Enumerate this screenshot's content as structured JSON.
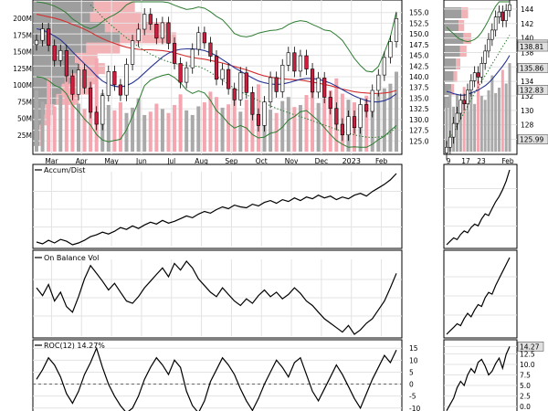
{
  "chart_data": {
    "type": "line",
    "colors": {
      "up_candle": "#ffffff",
      "down_candle": "#cc1f3f",
      "candle_outline": "#000000",
      "bollinger": "#2e7d32",
      "sma_red": "#d32f2f",
      "sma_blue": "#283593",
      "dotted_green": "#2e7d32",
      "volume_up": "#a9a9a9",
      "volume_down": "#f4a7b0",
      "volume_profile_grey": "#9e9e9e",
      "volume_profile_red": "#f2b3b7",
      "grid": "#e3e3e3",
      "label_box": "#e0e0e0"
    },
    "price_panel": {
      "x_labels": [
        "Mar",
        "Apr",
        "May",
        "Jun",
        "Jul",
        "Aug",
        "Sep",
        "Oct",
        "Nov",
        "Dec",
        "2023",
        "Feb"
      ],
      "y_labels": [
        "155.0",
        "152.5",
        "150.0",
        "147.5",
        "145.0",
        "142.5",
        "140.0",
        "137.5",
        "135.0",
        "132.5",
        "130.0",
        "127.5",
        "125.0"
      ],
      "y_range": [
        122.5,
        157.5
      ],
      "volume_labels": [
        "200M",
        "175M",
        "150M",
        "125M",
        "100M",
        "75M",
        "50M",
        "25M"
      ],
      "volume_range": [
        0,
        225
      ],
      "close": [
        148.5,
        151.2,
        147.3,
        143.8,
        146.1,
        140.2,
        135.9,
        141.6,
        137.4,
        131.7,
        128.9,
        135.6,
        141.2,
        138.1,
        135.7,
        142.9,
        148.4,
        151.1,
        154.6,
        152.3,
        149.0,
        152.6,
        147.8,
        143.1,
        138.7,
        142.1,
        146.4,
        150.3,
        147.9,
        144.8,
        139.4,
        141.7,
        137.2,
        134.6,
        140.9,
        136.3,
        131.2,
        128.6,
        134.1,
        139.8,
        136.5,
        142.7,
        145.6,
        141.3,
        144.9,
        141.8,
        136.4,
        139.7,
        135.2,
        132.6,
        128.9,
        126.4,
        130.7,
        128.1,
        133.5,
        131.9,
        136.8,
        140.4,
        144.5,
        148.2,
        153.6
      ],
      "bollinger_upper": [
        157.5,
        157.3,
        157.0,
        156.5,
        155.8,
        154.9,
        153.5,
        152.6,
        151.7,
        151.2,
        151.8,
        152.9,
        153.8,
        154.5,
        155.4,
        156.8,
        157.5,
        157.5,
        157.5,
        157.5,
        157.5,
        157.5,
        157.3,
        156.7,
        156.2,
        155.7,
        155.9,
        156.3,
        156.0,
        155.2,
        154.1,
        153.3,
        151.8,
        150.1,
        149.5,
        149.3,
        149.6,
        150.2,
        150.5,
        150.8,
        150.9,
        151.3,
        152.2,
        152.8,
        153.1,
        152.9,
        152.2,
        151.6,
        150.9,
        150.7,
        149.7,
        148.5,
        146.4,
        144.3,
        142.6,
        141.3,
        141.1,
        142.4,
        145.7,
        149.3,
        155.2
      ],
      "bollinger_lower": [
        140.0,
        139.8,
        139.1,
        138.0,
        137.4,
        136.0,
        133.4,
        131.9,
        130.1,
        128.7,
        126.5,
        125.2,
        124.8,
        125.1,
        125.4,
        127.6,
        130.8,
        134.3,
        137.9,
        139.2,
        139.8,
        140.3,
        140.6,
        139.8,
        138.6,
        136.9,
        136.1,
        136.7,
        136.2,
        134.5,
        132.1,
        130.8,
        129.1,
        128.0,
        128.6,
        128.0,
        126.5,
        125.7,
        125.9,
        126.8,
        127.1,
        128.2,
        129.9,
        130.7,
        131.8,
        132.1,
        130.9,
        129.7,
        128.1,
        126.5,
        125.1,
        124.2,
        123.5,
        123.6,
        123.5,
        123.5,
        124.2,
        125.3,
        126.1,
        127.4,
        128.6
      ],
      "sma_red": [
        154.6,
        154.3,
        154.0,
        153.7,
        153.3,
        152.8,
        152.2,
        151.7,
        151.1,
        150.4,
        149.6,
        148.9,
        148.3,
        147.8,
        147.3,
        146.9,
        146.6,
        146.4,
        146.3,
        146.3,
        146.2,
        146.1,
        145.9,
        145.6,
        145.2,
        144.8,
        144.5,
        144.3,
        144.1,
        143.8,
        143.5,
        143.2,
        142.8,
        142.4,
        142.0,
        141.6,
        141.1,
        140.6,
        140.2,
        139.9,
        139.7,
        139.5,
        139.4,
        139.3,
        139.2,
        139.0,
        138.7,
        138.5,
        138.2,
        137.9,
        137.5,
        137.1,
        136.8,
        136.5,
        136.3,
        136.2,
        136.1,
        136.1,
        136.2,
        136.4,
        136.8
      ],
      "sma_blue": [
        151.2,
        150.9,
        150.3,
        149.5,
        148.6,
        147.3,
        145.8,
        144.4,
        143.0,
        141.7,
        140.2,
        139.0,
        138.2,
        137.8,
        137.6,
        137.9,
        138.6,
        139.6,
        140.9,
        142.2,
        143.4,
        144.6,
        145.5,
        146.1,
        146.4,
        146.5,
        146.5,
        146.4,
        146.1,
        145.6,
        144.9,
        144.0,
        143.1,
        142.1,
        141.3,
        140.5,
        139.7,
        139.0,
        138.6,
        138.3,
        138.2,
        138.3,
        138.6,
        139.0,
        139.4,
        139.6,
        139.6,
        139.4,
        139.0,
        138.5,
        137.8,
        137.0,
        136.2,
        135.5,
        134.9,
        134.4,
        134.1,
        134.1,
        134.4,
        135.0,
        136.0
      ],
      "dotted_green": [
        null,
        null,
        null,
        null,
        null,
        null,
        null,
        null,
        null,
        156.8,
        155.4,
        153.9,
        152.6,
        151.4,
        150.2,
        149.1,
        148.0,
        147.0,
        146.1,
        145.3,
        144.6,
        144.0,
        143.5,
        143.1,
        142.8,
        142.6,
        142.5,
        142.4,
        141.8,
        141.0,
        140.1,
        139.2,
        138.2,
        137.3,
        136.5,
        135.8,
        135.1,
        134.4,
        133.8,
        133.2,
        132.6,
        132.1,
        131.6,
        131.1,
        130.7,
        130.2,
        129.7,
        129.2,
        128.7,
        128.2,
        127.7,
        127.2,
        126.8,
        126.4,
        126.1,
        125.9,
        125.8,
        125.9,
        126.2,
        126.9,
        128.3
      ],
      "volume": [
        92,
        75,
        110,
        68,
        85,
        120,
        98,
        72,
        64,
        105,
        140,
        88,
        70,
        62,
        74,
        58,
        66,
        80,
        55,
        60,
        72,
        64,
        58,
        70,
        86,
        62,
        55,
        68,
        74,
        90,
        82,
        66,
        71,
        94,
        60,
        78,
        88,
        101,
        69,
        63,
        58,
        76,
        82,
        67,
        70,
        85,
        97,
        73,
        80,
        92,
        110,
        87,
        78,
        74,
        69,
        84,
        76,
        88,
        95,
        102,
        120
      ],
      "volume_profile": [
        {
          "level": 156.3,
          "grey": 0.32,
          "red": 0.22
        },
        {
          "level": 153.9,
          "grey": 0.3,
          "red": 0.28
        },
        {
          "level": 151.5,
          "grey": 0.38,
          "red": 0.35
        },
        {
          "level": 149.1,
          "grey": 0.46,
          "red": 0.3
        },
        {
          "level": 146.7,
          "grey": 0.28,
          "red": 0.18
        },
        {
          "level": 144.3,
          "grey": 0.22,
          "red": 0.12
        },
        {
          "level": 141.9,
          "grey": 0.24,
          "red": 0.14
        },
        {
          "level": 139.5,
          "grey": 0.2,
          "red": 0.13
        },
        {
          "level": 137.1,
          "grey": 0.15,
          "red": 0.15
        },
        {
          "level": 134.7,
          "grey": 0.12,
          "red": 0.12
        },
        {
          "level": 132.3,
          "grey": 0.06,
          "red": 0.05
        },
        {
          "level": 129.9,
          "grey": 0.04,
          "red": 0.05
        },
        {
          "level": 127.5,
          "grey": 0.03,
          "red": 0.02
        },
        {
          "level": 125.1,
          "grey": 0.03,
          "red": 0.01
        }
      ],
      "last_price_label": ""
    },
    "accum_dist": {
      "label": "Accum/Dist",
      "values": [
        22,
        20,
        24,
        21,
        25,
        23,
        19,
        21,
        24,
        28,
        30,
        33,
        31,
        34,
        38,
        36,
        40,
        37,
        41,
        44,
        42,
        46,
        43,
        45,
        48,
        51,
        49,
        53,
        56,
        54,
        58,
        61,
        59,
        63,
        61,
        60,
        64,
        62,
        66,
        68,
        65,
        69,
        67,
        71,
        68,
        72,
        70,
        74,
        71,
        73,
        69,
        72,
        70,
        74,
        76,
        73,
        78,
        82,
        86,
        91,
        98
      ]
    },
    "obv": {
      "label": "On Balance Vol",
      "values": [
        52,
        45,
        55,
        40,
        48,
        35,
        30,
        44,
        60,
        72,
        65,
        58,
        50,
        56,
        48,
        40,
        38,
        44,
        52,
        58,
        64,
        70,
        62,
        74,
        68,
        76,
        70,
        60,
        54,
        48,
        44,
        52,
        46,
        40,
        36,
        42,
        38,
        45,
        50,
        44,
        48,
        42,
        46,
        52,
        47,
        40,
        36,
        30,
        24,
        20,
        16,
        12,
        18,
        10,
        14,
        20,
        24,
        32,
        40,
        52,
        65
      ]
    },
    "roc": {
      "label": "ROC(12) 14.27%",
      "y_labels": [
        "15",
        "10",
        "5",
        "0",
        "-5",
        "-10"
      ],
      "y_range": [
        -12,
        17
      ],
      "zero_line": 0,
      "values": [
        2,
        6,
        11,
        8,
        3,
        -4,
        -8,
        -3,
        4,
        9,
        15,
        7,
        0,
        -5,
        -9,
        -12,
        -10,
        -5,
        2,
        7,
        11,
        8,
        4,
        10,
        7,
        -3,
        -9,
        -12,
        -7,
        1,
        6,
        11,
        8,
        4,
        -2,
        -7,
        -11,
        -6,
        0,
        5,
        10,
        7,
        3,
        9,
        11,
        4,
        -3,
        -7,
        -2,
        3,
        8,
        4,
        -1,
        -6,
        -10,
        -4,
        2,
        7,
        12,
        9,
        14.27
      ]
    },
    "zoom_price": {
      "x_labels": [
        "9",
        "17",
        "23",
        "Feb"
      ],
      "y_labels": [
        "144",
        "142",
        "140",
        "138",
        "136",
        "134",
        "132",
        "130",
        "128",
        "126"
      ],
      "y_range": [
        124.3,
        145
      ],
      "price_labels": [
        "139.09",
        "138.81",
        "135.86",
        "132.83",
        "125.99"
      ],
      "close": [
        124.9,
        126.3,
        128.2,
        129.6,
        131.4,
        130.9,
        132.8,
        134.1,
        135.2,
        134.6,
        136.5,
        138.2,
        139.8,
        141.1,
        142.9,
        143.6,
        142.4,
        143.8,
        144.6
      ],
      "sma": [
        132.6,
        132.5,
        132.3,
        132.2,
        132.1,
        132.1,
        132.2,
        132.4,
        132.6,
        132.8,
        133.1,
        133.4,
        133.8,
        134.3,
        134.9,
        135.5,
        136.1,
        136.8,
        137.6
      ],
      "bollinger": [
        141.5,
        141.0,
        140.6,
        140.1,
        139.8,
        139.6,
        139.5,
        139.6,
        139.8,
        140.2,
        140.8,
        141.6,
        142.5,
        143.5,
        144.4,
        145.0,
        145.0,
        145.0,
        145.0
      ],
      "dotted": [
        125.4,
        126.1,
        127.0,
        127.9,
        128.8,
        129.7,
        130.6,
        131.5,
        132.4,
        133.2,
        134.0,
        134.8,
        135.6,
        136.4,
        137.2,
        138.0,
        138.8,
        139.6,
        140.4
      ],
      "volume": [
        78,
        92,
        66,
        84,
        72,
        95,
        60,
        88,
        70,
        104,
        82,
        76,
        90,
        112,
        86,
        94,
        120,
        100,
        130
      ]
    },
    "zoom_accum": {
      "values": [
        8,
        12,
        16,
        14,
        20,
        24,
        22,
        28,
        32,
        30,
        38,
        44,
        42,
        50,
        58,
        64,
        72,
        82,
        95
      ]
    },
    "zoom_obv": {
      "values": [
        10,
        14,
        18,
        22,
        20,
        28,
        34,
        30,
        38,
        44,
        42,
        52,
        58,
        56,
        66,
        74,
        82,
        90,
        98
      ]
    },
    "zoom_roc": {
      "y_labels": [
        "14.27",
        "12.5",
        "10.0",
        "7.5",
        "5.0",
        "2.5",
        "0.0"
      ],
      "y_range": [
        -1.5,
        15
      ],
      "values": [
        -1,
        0.5,
        2,
        4.5,
        6,
        5,
        7.5,
        9,
        8,
        10.5,
        11.2,
        9.6,
        7.5,
        8.4,
        10.2,
        11.5,
        9.1,
        12.4,
        14.27
      ]
    }
  }
}
